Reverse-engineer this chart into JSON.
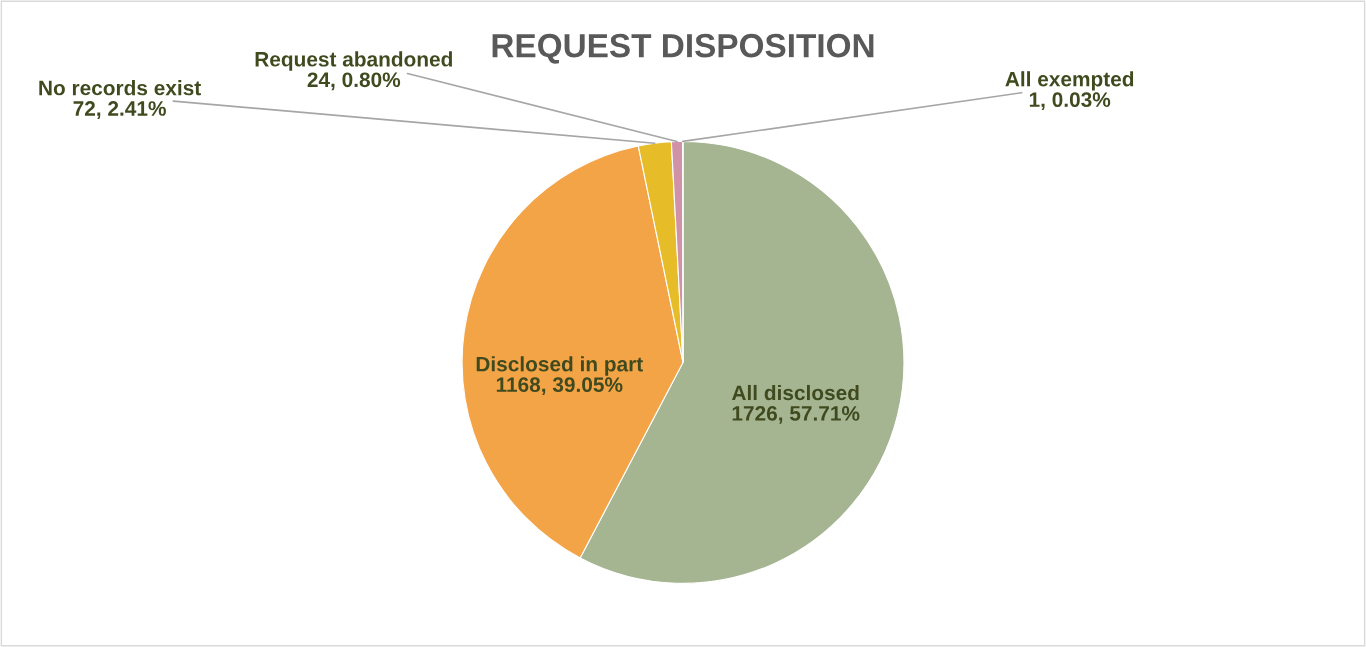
{
  "chart_data": {
    "type": "pie",
    "title": "REQUEST DISPOSITION",
    "categories": [
      "All disclosed",
      "Disclosed in part",
      "No records exist",
      "Request abandoned",
      "All exempted"
    ],
    "values": [
      1726,
      1168,
      72,
      24,
      1
    ],
    "colors": [
      "#a5b592",
      "#f3a447",
      "#e7bc29",
      "#d092a7",
      "#9c85c0"
    ],
    "value_labels": [
      "1726, 57.71%",
      "1168, 39.05%",
      "72, 2.41%",
      "24, 0.80%",
      "1, 0.03%"
    ],
    "legend": false
  }
}
